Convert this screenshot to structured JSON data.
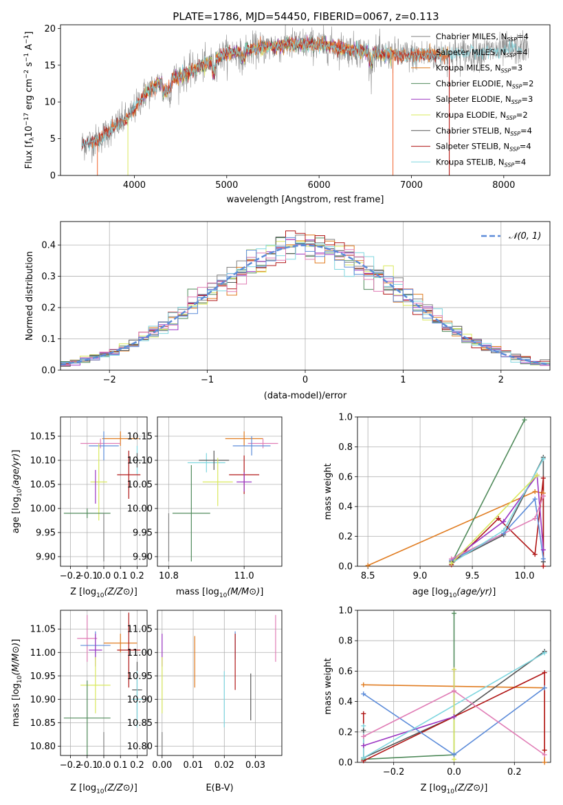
{
  "figure_title": "PLATE=1786, MJD=54450, FIBERID=0067, z=0.113",
  "colors": {
    "Chabrier MILES": "#808080",
    "Salpeter MILES": "#f0602a",
    "Kroupa MILES": "#e07b1f",
    "Chabrier ELODIE": "#4f8a5a",
    "Salpeter ELODIE": "#9a34c2",
    "Kroupa ELODIE": "#d9e85a",
    "Chabrier STELIB": "#555555",
    "Salpeter STELIB": "#b01515",
    "Kroupa STELIB": "#7ed6df",
    "extra_pink": "#e07cb5",
    "extra_blue": "#5b8bd9",
    "normal_curve": "#5b8bd9"
  },
  "chart_data": [
    {
      "id": "spectrum",
      "type": "line",
      "title": "PLATE=1786, MJD=54450, FIBERID=0067, z=0.113",
      "xlabel": "wavelength [Angstrom, rest frame]",
      "ylabel_parts": [
        "Flux [f",
        "λ",
        "10",
        "−17",
        " erg cm",
        "−2",
        " s",
        "−1",
        " A",
        "−1",
        "]"
      ],
      "xlim": [
        3200,
        8500
      ],
      "ylim": [
        0,
        20.5
      ],
      "xticks": [
        4000,
        5000,
        6000,
        7000,
        8000
      ],
      "yticks": [
        0,
        5,
        10,
        15,
        20
      ],
      "grid": false,
      "legend_position": "top-right",
      "legend": [
        {
          "label": "Chabrier MILES",
          "sub": "SSP",
          "n": "4"
        },
        {
          "label": "Salpeter MILES",
          "sub": "SSP",
          "n": "4"
        },
        {
          "label": "Kroupa MILES",
          "sub": "SSP",
          "n": "3"
        },
        {
          "label": "Chabrier ELODIE",
          "sub": "SSP",
          "n": "2"
        },
        {
          "label": "Salpeter ELODIE",
          "sub": "SSP",
          "n": "3"
        },
        {
          "label": "Kroupa ELODIE",
          "sub": "SSP",
          "n": "2"
        },
        {
          "label": "Chabrier STELIB",
          "sub": "SSP",
          "n": "4"
        },
        {
          "label": "Salpeter STELIB",
          "sub": "SSP",
          "n": "4"
        },
        {
          "label": "Kroupa STELIB",
          "sub": "SSP",
          "n": "4"
        }
      ],
      "continuum": [
        [
          3430,
          4.2
        ],
        [
          3600,
          4.8
        ],
        [
          3800,
          6.8
        ],
        [
          3950,
          8.0
        ],
        [
          4100,
          11.0
        ],
        [
          4300,
          12.8
        ],
        [
          4500,
          13.5
        ],
        [
          4800,
          15.3
        ],
        [
          5000,
          16.6
        ],
        [
          5200,
          17.0
        ],
        [
          5500,
          17.6
        ],
        [
          5800,
          17.9
        ],
        [
          6100,
          17.7
        ],
        [
          6400,
          17.0
        ],
        [
          6700,
          16.4
        ],
        [
          7000,
          16.3
        ],
        [
          7200,
          16.4
        ],
        [
          7500,
          16.6
        ],
        [
          7800,
          16.9
        ],
        [
          8000,
          17.0
        ],
        [
          8200,
          17.3
        ]
      ],
      "series_ranges": [
        {
          "name": "Chabrier MILES",
          "x": [
            3430,
            8270
          ]
        },
        {
          "name": "Salpeter MILES",
          "x": [
            3540,
            7400
          ]
        },
        {
          "name": "Kroupa MILES",
          "x": [
            3540,
            7400
          ]
        },
        {
          "name": "Chabrier ELODIE",
          "x": [
            4100,
            6800
          ]
        },
        {
          "name": "Salpeter ELODIE",
          "x": [
            4100,
            6800
          ]
        },
        {
          "name": "Kroupa ELODIE",
          "x": [
            4100,
            6800
          ]
        },
        {
          "name": "Chabrier STELIB",
          "x": [
            3430,
            7300
          ]
        },
        {
          "name": "Salpeter STELIB",
          "x": [
            3430,
            7300
          ]
        },
        {
          "name": "Kroupa STELIB",
          "x": [
            3430,
            8200
          ]
        }
      ]
    },
    {
      "id": "residuals",
      "type": "line",
      "xlabel": "(data-model)/error",
      "ylabel": "Normed distribution",
      "xlim": [
        -2.5,
        2.5
      ],
      "ylim": [
        0,
        0.475
      ],
      "xticks": [
        -2,
        -1,
        0,
        1,
        2
      ],
      "yticks": [
        0.0,
        0.1,
        0.2,
        0.3,
        0.4
      ],
      "grid": true,
      "legend_position": "top-right",
      "legend": [
        {
          "label": "𝒩(0, 1)",
          "style": "dashed"
        }
      ],
      "bin_width": 0.1,
      "histogram_series_count": 10
    },
    {
      "id": "age_vs_Z",
      "type": "scatter",
      "xlabel": "Z [log10(Z/Z⊙)]",
      "ylabel": "age  [log10(age/yr)]",
      "xlim": [
        -0.26,
        0.26
      ],
      "ylim": [
        9.88,
        10.19
      ],
      "xticks": [
        -0.2,
        -0.1,
        0.0,
        0.1,
        0.2
      ],
      "yticks": [
        9.9,
        9.95,
        10.0,
        10.05,
        10.1,
        10.15
      ],
      "grid": true,
      "points": [
        {
          "color": "#e07b1f",
          "x": 0.1,
          "y": 10.145,
          "xerr": 0.11,
          "yerr": 0.015
        },
        {
          "color": "#e07cb5",
          "x": -0.02,
          "y": 10.135,
          "xerr": 0.12,
          "yerr": 0.01
        },
        {
          "color": "#5b8bd9",
          "x": 0.0,
          "y": 10.13,
          "xerr": 0.09,
          "yerr": 0.03
        },
        {
          "color": "#7ed6df",
          "x": 0.2,
          "y": 10.1,
          "xerr": 0.03,
          "yerr": 0.03
        },
        {
          "color": "#555555",
          "x": 0.2,
          "y": 10.1,
          "xerr": 0.03,
          "yerr": 0.015
        },
        {
          "color": "#b01515",
          "x": 0.15,
          "y": 10.07,
          "xerr": 0.07,
          "yerr": 0.05
        },
        {
          "color": "#d9e85a",
          "x": -0.03,
          "y": 10.055,
          "xerr": 0.05,
          "yerr": 0.08
        },
        {
          "color": "#9a34c2",
          "x": -0.05,
          "y": 10.045,
          "xerr": 0.0,
          "yerr": 0.035
        },
        {
          "color": "#4f8a5a",
          "x": -0.1,
          "y": 9.99,
          "xerr": 0.14,
          "yerr": 0.01
        },
        {
          "color": "#808080",
          "x": 0.0,
          "y": 9.94,
          "xerr": 0.0,
          "yerr": 0.05
        }
      ]
    },
    {
      "id": "age_vs_mass",
      "type": "scatter",
      "xlabel": "mass [log10(M/M⊙)]",
      "ylabel": "",
      "xlim": [
        10.77,
        11.1
      ],
      "ylim": [
        9.88,
        10.19
      ],
      "xticks": [
        10.8,
        11.0
      ],
      "yticks": [
        9.9,
        9.95,
        10.0,
        10.05,
        10.1,
        10.15
      ],
      "grid": true,
      "points": [
        {
          "color": "#e07b1f",
          "x": 11.0,
          "y": 10.145,
          "xerr": 0.05,
          "yerr": 0.015
        },
        {
          "color": "#e07cb5",
          "x": 11.05,
          "y": 10.135,
          "xerr": 0.04,
          "yerr": 0.01
        },
        {
          "color": "#5b8bd9",
          "x": 11.02,
          "y": 10.13,
          "xerr": 0.05,
          "yerr": 0.02
        },
        {
          "color": "#7ed6df",
          "x": 10.9,
          "y": 10.095,
          "xerr": 0.05,
          "yerr": 0.02
        },
        {
          "color": "#555555",
          "x": 10.92,
          "y": 10.1,
          "xerr": 0.04,
          "yerr": 0.02
        },
        {
          "color": "#b01515",
          "x": 11.0,
          "y": 10.07,
          "xerr": 0.04,
          "yerr": 0.04
        },
        {
          "color": "#d9e85a",
          "x": 10.93,
          "y": 10.055,
          "xerr": 0.04,
          "yerr": 0.05
        },
        {
          "color": "#9a34c2",
          "x": 11.0,
          "y": 10.055,
          "xerr": 0.02,
          "yerr": 0.02
        },
        {
          "color": "#4f8a5a",
          "x": 10.86,
          "y": 9.99,
          "xerr": 0.05,
          "yerr": 0.1
        },
        {
          "color": "#808080",
          "x": 10.8,
          "y": 9.94,
          "xerr": 0.0,
          "yerr": 0.05
        }
      ]
    },
    {
      "id": "weight_vs_age",
      "type": "line",
      "xlabel": "age  [log10(age/yr)]",
      "ylabel": "mass weight",
      "xlim": [
        8.4,
        10.25
      ],
      "ylim": [
        0,
        1.0
      ],
      "xticks": [
        8.5,
        9.0,
        9.5,
        10.0
      ],
      "yticks": [
        0.0,
        0.2,
        0.4,
        0.6,
        0.8,
        1.0
      ],
      "grid": true,
      "series": [
        {
          "color": "#e07b1f",
          "x": [
            8.5,
            10.1,
            10.18
          ],
          "y": [
            0.005,
            0.5,
            0.49
          ]
        },
        {
          "color": "#4f8a5a",
          "x": [
            9.3,
            10.0
          ],
          "y": [
            0.02,
            0.98
          ]
        },
        {
          "color": "#555555",
          "x": [
            9.3,
            9.8,
            10.18,
            10.18
          ],
          "y": [
            0.03,
            0.21,
            0.73,
            0.03
          ]
        },
        {
          "color": "#b01515",
          "x": [
            9.3,
            9.75,
            10.1,
            10.18,
            10.18
          ],
          "y": [
            0.01,
            0.32,
            0.08,
            0.59,
            0.0
          ]
        },
        {
          "color": "#9a34c2",
          "x": [
            9.3,
            9.8,
            10.12,
            10.18
          ],
          "y": [
            0.04,
            0.3,
            0.61,
            0.11
          ]
        },
        {
          "color": "#5b8bd9",
          "x": [
            9.3,
            9.8,
            10.1,
            10.18
          ],
          "y": [
            0.04,
            0.22,
            0.45,
            0.05
          ]
        },
        {
          "color": "#e07cb5",
          "x": [
            9.3,
            10.1,
            10.18
          ],
          "y": [
            0.05,
            0.32,
            0.47
          ]
        },
        {
          "color": "#7ed6df",
          "x": [
            9.3,
            9.8,
            10.18
          ],
          "y": [
            0.02,
            0.24,
            0.72
          ]
        },
        {
          "color": "#d9e85a",
          "x": [
            9.3,
            10.12
          ],
          "y": [
            0.02,
            0.61
          ]
        }
      ]
    },
    {
      "id": "mass_vs_Z",
      "type": "scatter",
      "xlabel": "Z [log10(Z/Z⊙)]",
      "ylabel": "mass [log10(M/M⊙)]",
      "xlim": [
        -0.26,
        0.26
      ],
      "ylim": [
        10.78,
        11.09
      ],
      "xticks": [
        -0.2,
        -0.1,
        0.0,
        0.1,
        0.2
      ],
      "yticks": [
        10.8,
        10.85,
        10.9,
        10.95,
        11.0,
        11.05
      ],
      "grid": true,
      "points": [
        {
          "color": "#e07cb5",
          "x": -0.1,
          "y": 11.03,
          "xerr": 0.06,
          "yerr": 0.05
        },
        {
          "color": "#e07b1f",
          "x": 0.1,
          "y": 11.02,
          "xerr": 0.1,
          "yerr": 0.02
        },
        {
          "color": "#5b8bd9",
          "x": -0.05,
          "y": 11.015,
          "xerr": 0.09,
          "yerr": 0.03
        },
        {
          "color": "#9a34c2",
          "x": -0.05,
          "y": 11.005,
          "xerr": 0.04,
          "yerr": 0.035
        },
        {
          "color": "#b01515",
          "x": 0.15,
          "y": 11.005,
          "xerr": 0.07,
          "yerr": 0.08
        },
        {
          "color": "#d9e85a",
          "x": -0.05,
          "y": 10.93,
          "xerr": 0.09,
          "yerr": 0.06
        },
        {
          "color": "#555555",
          "x": 0.2,
          "y": 10.92,
          "xerr": 0.03,
          "yerr": 0.06
        },
        {
          "color": "#7ed6df",
          "x": 0.2,
          "y": 10.9,
          "xerr": 0.03,
          "yerr": 0.06
        },
        {
          "color": "#4f8a5a",
          "x": -0.1,
          "y": 10.86,
          "xerr": 0.14,
          "yerr": 0.08
        },
        {
          "color": "#808080",
          "x": 0.0,
          "y": 10.8,
          "xerr": 0.0,
          "yerr": 0.03
        }
      ]
    },
    {
      "id": "mass_vs_EBV",
      "type": "scatter",
      "xlabel": "E(B-V)",
      "ylabel": "",
      "xlim": [
        -0.0015,
        0.0385
      ],
      "ylim": [
        10.78,
        11.09
      ],
      "xticks": [
        0.0,
        0.01,
        0.02,
        0.03
      ],
      "yticks": [
        10.8,
        10.85,
        10.9,
        10.95,
        11.0,
        11.05
      ],
      "grid": true,
      "points": [
        {
          "color": "#9a34c2",
          "x": 0.0,
          "y": 11.005,
          "xerr": 0.0,
          "yerr": 0.035
        },
        {
          "color": "#d9e85a",
          "x": 0.0,
          "y": 10.93,
          "xerr": 0.0,
          "yerr": 0.06
        },
        {
          "color": "#808080",
          "x": 0.0,
          "y": 10.8,
          "xerr": 0.0,
          "yerr": 0.03
        },
        {
          "color": "#e07b1f",
          "x": 0.0105,
          "y": 10.98,
          "xerr": 0.0,
          "yerr": 0.055
        },
        {
          "color": "#5b8bd9",
          "x": 0.0235,
          "y": 11.015,
          "xerr": 0.0,
          "yerr": 0.03
        },
        {
          "color": "#b01515",
          "x": 0.0235,
          "y": 10.98,
          "xerr": 0.0,
          "yerr": 0.06
        },
        {
          "color": "#7ed6df",
          "x": 0.02,
          "y": 10.9,
          "xerr": 0.0,
          "yerr": 0.06
        },
        {
          "color": "#555555",
          "x": 0.0285,
          "y": 10.905,
          "xerr": 0.0,
          "yerr": 0.05
        },
        {
          "color": "#e07cb5",
          "x": 0.0365,
          "y": 11.03,
          "xerr": 0.0,
          "yerr": 0.05
        }
      ]
    },
    {
      "id": "weight_vs_Z",
      "type": "line",
      "xlabel": "Z [log10(Z/Z⊙)]",
      "ylabel": "mass weight",
      "xlim": [
        -0.32,
        0.32
      ],
      "ylim": [
        0,
        1.0
      ],
      "xticks": [
        -0.2,
        0.0,
        0.2
      ],
      "yticks": [
        0.0,
        0.2,
        0.4,
        0.6,
        0.8,
        1.0
      ],
      "grid": true,
      "series": [
        {
          "color": "#e07b1f",
          "x": [
            -0.3,
            0.3,
            0.3
          ],
          "y": [
            0.51,
            0.49,
            0.0
          ]
        },
        {
          "color": "#4f8a5a",
          "x": [
            -0.3,
            0.0,
            0.0
          ],
          "y": [
            0.02,
            0.05,
            0.98
          ]
        },
        {
          "color": "#555555",
          "x": [
            -0.3,
            -0.3,
            0.0,
            0.3
          ],
          "y": [
            0.21,
            0.03,
            0.3,
            0.73
          ]
        },
        {
          "color": "#b01515",
          "x": [
            -0.3,
            -0.3,
            0.3,
            0.3
          ],
          "y": [
            0.32,
            0.01,
            0.59,
            0.08
          ]
        },
        {
          "color": "#9a34c2",
          "x": [
            -0.3,
            0.0,
            0.0
          ],
          "y": [
            0.11,
            0.3,
            0.61
          ]
        },
        {
          "color": "#5b8bd9",
          "x": [
            -0.3,
            0.0,
            0.3
          ],
          "y": [
            0.45,
            0.05,
            0.49
          ]
        },
        {
          "color": "#e07cb5",
          "x": [
            -0.3,
            0.0,
            0.3
          ],
          "y": [
            0.17,
            0.47,
            0.05
          ]
        },
        {
          "color": "#7ed6df",
          "x": [
            -0.3,
            -0.3,
            0.3
          ],
          "y": [
            0.24,
            0.03,
            0.72
          ]
        },
        {
          "color": "#d9e85a",
          "x": [
            0.0,
            0.0
          ],
          "y": [
            0.61,
            0.02
          ]
        }
      ]
    }
  ]
}
